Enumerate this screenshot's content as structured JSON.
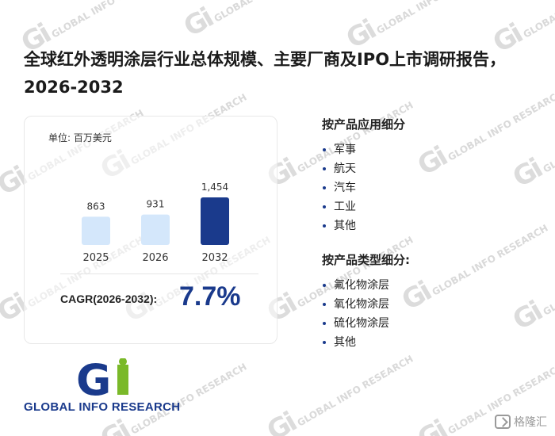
{
  "report_title": "全球红外透明涂层行业总体规模、主要厂商及IPO上市调研报告，2026-2032",
  "watermark": {
    "mark": "Gi",
    "text": "GLOBAL INFO RESEARCH"
  },
  "chart_data": {
    "type": "bar",
    "unit_label": "单位: 百万美元",
    "categories": [
      "2025",
      "2026",
      "2032"
    ],
    "values": [
      863,
      931,
      1454
    ],
    "value_labels": [
      "863",
      "931",
      "1,454"
    ],
    "bar_colors": [
      "#d4e7fb",
      "#d4e7fb",
      "#1a3a8c"
    ],
    "title": "",
    "xlabel": "",
    "ylabel": ""
  },
  "cagr": {
    "label": "CAGR(2026-2032):",
    "value": "7.7%"
  },
  "segments": {
    "by_application": {
      "title": "按产品应用细分",
      "items": [
        "军事",
        "航天",
        "汽车",
        "工业",
        "其他"
      ]
    },
    "by_type": {
      "title": "按产品类型细分:",
      "items": [
        "氟化物涂层",
        "氧化物涂层",
        "硫化物涂层",
        "其他"
      ]
    }
  },
  "logo": {
    "mark": "Gi",
    "text": "GLOBAL INFO RESEARCH"
  },
  "source_badge": {
    "text": "格隆汇"
  },
  "colors": {
    "accent": "#1a3a8c",
    "logo_green": "#7ab929",
    "bar_light": "#d4e7fb"
  }
}
